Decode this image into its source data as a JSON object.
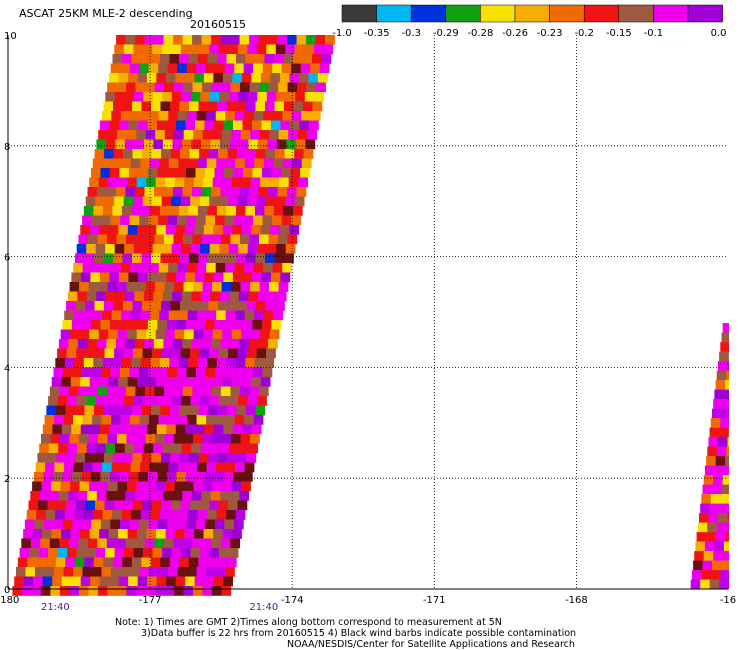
{
  "title": "ASCAT 25KM MLE-2 descending",
  "date": "20160515",
  "colorbar": {
    "ticks": [
      "-1.0",
      "-0.35",
      "-0.3",
      "-0.29",
      "-0.28",
      "-0.26",
      "-0.23",
      "-0.2",
      "-0.15",
      "-0.1",
      "0.0"
    ],
    "colors": [
      "#3b3b3b",
      "#00b7f2",
      "#0030e0",
      "#10a010",
      "#f8e000",
      "#f7ae00",
      "#f06a00",
      "#ee1414",
      "#9e5a40",
      "#ee00ee",
      "#a000d8"
    ]
  },
  "time_labels": [
    "21:40",
    "21:40"
  ],
  "notes": [
    "Note: 1) Times are GMT 2)Times along bottom correspond to measurement at 5N",
    "3)Data buffer is 22 hrs from 20160515 4) Black wind barbs indicate possible contamination",
    "NOAA/NESDIS/Center for Satellite Applications and Research"
  ],
  "chart_data": {
    "type": "heatmap",
    "title": "ASCAT 25KM MLE-2 descending",
    "subtitle": "20160515",
    "x_ticks": [
      "-180",
      "-177",
      "-174",
      "-171",
      "-168",
      "-16"
    ],
    "y_ticks": [
      "0",
      "2",
      "4",
      "6",
      "8",
      "10"
    ],
    "xlim": [
      -180,
      -164.8
    ],
    "ylim": [
      0,
      10
    ],
    "grid": true,
    "value_range": [
      -1.0,
      0.0
    ],
    "swaths": [
      {
        "name": "main",
        "lat_range": [
          0,
          10
        ],
        "lon_west_at_bottom": -179.9,
        "lon_west_at_top": -177.7,
        "lon_east_at_bottom": -175.3,
        "lon_east_at_top": -173.1
      },
      {
        "name": "east",
        "lat_range": [
          0,
          4.8
        ],
        "lon_west_at_bottom": -165.6,
        "lon_west_at_top": -164.9,
        "lon_east_at_bottom": -164.8,
        "lon_east_at_top": -164.8
      }
    ]
  }
}
